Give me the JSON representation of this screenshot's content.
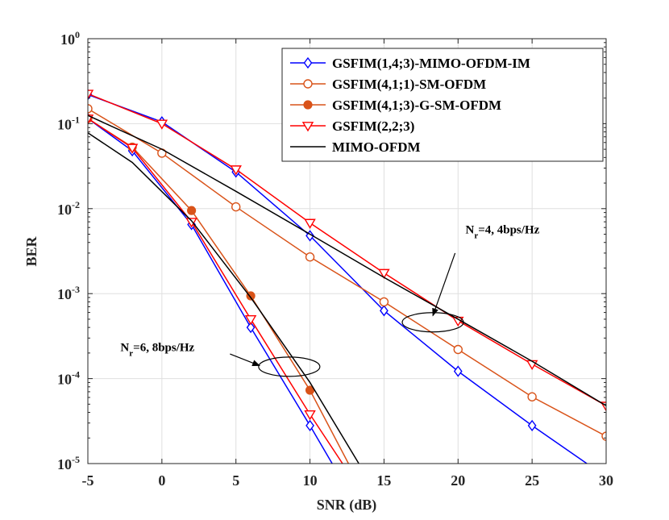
{
  "chart_data": {
    "type": "line",
    "title": "",
    "xlabel": "SNR (dB)",
    "ylabel": "BER",
    "xlim": [
      -5,
      30
    ],
    "ylim": [
      1e-05,
      1
    ],
    "yscale": "log",
    "grid": true,
    "legend_position": "top-right",
    "x_ticks": [
      "-5",
      "0",
      "5",
      "10",
      "15",
      "20",
      "25",
      "30"
    ],
    "y_ticks": [
      {
        "base": "10",
        "exp": "0"
      },
      {
        "base": "10",
        "exp": "-1"
      },
      {
        "base": "10",
        "exp": "-2"
      },
      {
        "base": "10",
        "exp": "-3"
      },
      {
        "base": "10",
        "exp": "-4"
      },
      {
        "base": "10",
        "exp": "-5"
      }
    ],
    "series": [
      {
        "name": "GSFIM(1,4;3)-MIMO-OFDM-IM",
        "color": "#0000ff",
        "marker": "diamond",
        "groups": [
          {
            "x": [
              -5,
              -2,
              2,
              6,
              10,
              11.5
            ],
            "y": [
              0.115,
              0.048,
              0.0065,
              0.0004,
              2.8e-05,
              1e-05
            ],
            "markers": [
              true,
              true,
              true,
              true,
              true,
              false
            ]
          },
          {
            "x": [
              -5,
              0,
              5,
              10,
              15,
              20,
              25,
              28.7
            ],
            "y": [
              0.22,
              0.105,
              0.027,
              0.0048,
              0.00063,
              0.000122,
              2.8e-05,
              1e-05
            ],
            "markers": [
              true,
              true,
              true,
              true,
              true,
              true,
              true,
              false
            ]
          }
        ]
      },
      {
        "name": "GSFIM(4,1;1)-SM-OFDM",
        "color": "#d95319",
        "marker": "circle-open",
        "groups": [
          {
            "x": [
              -5,
              0,
              5,
              10,
              15,
              20,
              25,
              30
            ],
            "y": [
              0.15,
              0.045,
              0.0105,
              0.0027,
              0.0008,
              0.00022,
              6.1e-05,
              2.1e-05
            ],
            "markers": [
              true,
              true,
              true,
              true,
              true,
              true,
              true,
              true
            ]
          }
        ]
      },
      {
        "name": "GSFIM(4,1;3)-G-SM-OFDM",
        "color": "#d95319",
        "marker": "circle-filled",
        "groups": [
          {
            "x": [
              -5,
              -2,
              2,
              6,
              10,
              12.6
            ],
            "y": [
              0.115,
              0.053,
              0.0095,
              0.00094,
              7.3e-05,
              1e-05
            ],
            "markers": [
              true,
              true,
              true,
              true,
              true,
              false
            ]
          }
        ]
      },
      {
        "name": "GSFIM(2,2;3)",
        "color": "#ff0000",
        "marker": "triangle-down",
        "groups": [
          {
            "x": [
              -5,
              -2,
              2,
              6,
              10,
              12.2
            ],
            "y": [
              0.115,
              0.052,
              0.007,
              0.0005,
              3.8e-05,
              1e-05
            ],
            "markers": [
              true,
              true,
              true,
              true,
              true,
              false
            ]
          },
          {
            "x": [
              -5,
              0,
              5,
              10,
              15,
              20,
              25,
              30
            ],
            "y": [
              0.225,
              0.1,
              0.029,
              0.0068,
              0.00175,
              0.00048,
              0.000148,
              4.8e-05
            ],
            "markers": [
              true,
              true,
              true,
              true,
              true,
              true,
              true,
              true
            ]
          }
        ]
      },
      {
        "name": "MIMO-OFDM",
        "color": "#000000",
        "marker": "none",
        "groups": [
          {
            "x": [
              -5,
              -2,
              2,
              6,
              10,
              13.3
            ],
            "y": [
              0.078,
              0.035,
              0.0072,
              0.0009,
              9e-05,
              1e-05
            ],
            "markers": [
              false,
              false,
              false,
              false,
              false,
              false
            ]
          },
          {
            "x": [
              -5,
              0,
              5,
              10,
              15,
              20,
              25,
              30
            ],
            "y": [
              0.125,
              0.05,
              0.016,
              0.005,
              0.00155,
              0.0005,
              0.00016,
              4.8e-05
            ],
            "markers": [
              false,
              false,
              false,
              false,
              false,
              false,
              false,
              false
            ]
          }
        ]
      }
    ],
    "annotations": [
      {
        "label": "N",
        "sub": "r",
        "rest": "=4, 4bps/Hz",
        "ellipse_center": [
          18.3,
          0.00046
        ],
        "text_pos": [
          20.5,
          0.0051
        ],
        "arrow_from": [
          19.8,
          0.003
        ],
        "arrow_to": [
          18.3,
          0.00055
        ]
      },
      {
        "label": "N",
        "sub": "r",
        "rest": "=6, 8bps/Hz",
        "ellipse_center": [
          8.6,
          0.000138
        ],
        "text_pos": [
          -2.8,
          0.00021
        ],
        "arrow_from": [
          4.6,
          0.000195
        ],
        "arrow_to": [
          6.6,
          0.000142
        ]
      }
    ]
  }
}
